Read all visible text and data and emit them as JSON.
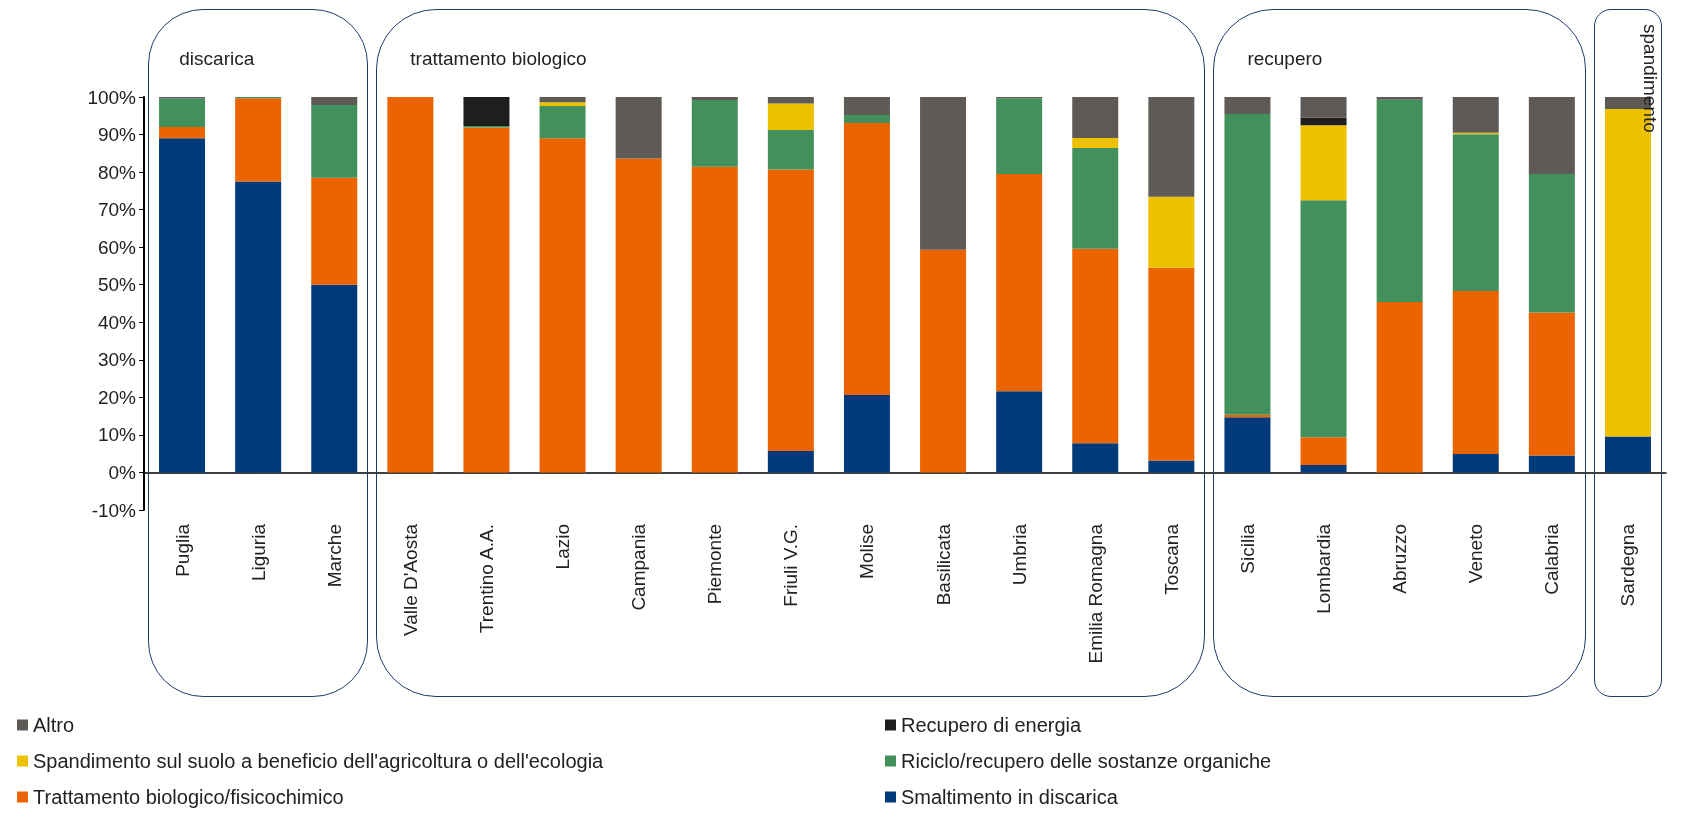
{
  "chart_data": {
    "type": "bar",
    "stacked": true,
    "categories": [
      "Puglia",
      "Liguria",
      "Marche",
      "Valle D'Aosta",
      "Trentino A.A.",
      "Lazio",
      "Campania",
      "Piemonte",
      "Friuli V.G.",
      "Molise",
      "Basilicata",
      "Umbria",
      "Emilia Romagna",
      "Toscana",
      "Sicilia",
      "Lombardia",
      "Abruzzo",
      "Veneto",
      "Calabria",
      "Sardegna"
    ],
    "series": [
      {
        "name": "Smaltimento in discarica",
        "color": "#003a7a",
        "values": [
          89,
          77.5,
          50,
          0,
          0,
          0,
          0,
          0,
          5.7,
          20.6,
          0,
          21.6,
          7.8,
          3.2,
          14.7,
          2.0,
          0,
          4.9,
          4.5,
          9.6
        ]
      },
      {
        "name": "Trattamento biologico/fisicochimico",
        "color": "#ec6400",
        "values": [
          3,
          22.2,
          28.5,
          100,
          91.9,
          89,
          83.6,
          81.4,
          75,
          72.5,
          59.3,
          57.9,
          51.8,
          51.3,
          0.7,
          7.4,
          45.4,
          43.4,
          38.1,
          0
        ]
      },
      {
        "name": "Riciclo/recupero delle sostanze organiche",
        "color": "#42915c",
        "values": [
          7.6,
          0.3,
          19.4,
          0,
          0.4,
          8.6,
          0,
          17.8,
          10.5,
          2.1,
          0,
          20.2,
          26.8,
          0,
          80.1,
          63.1,
          53.9,
          41.8,
          36.9,
          0
        ]
      },
      {
        "name": "Spandimento sul suolo a beneficio dell'agricoltura o dell'ecologia",
        "color": "#edc000",
        "values": [
          0,
          0,
          0,
          0,
          0,
          1.0,
          0,
          0,
          7.1,
          0,
          0,
          0,
          2.7,
          18.9,
          0,
          20,
          0,
          0.4,
          0,
          87.2
        ]
      },
      {
        "name": "Recupero di energia",
        "color": "#1e1e1e",
        "values": [
          0,
          0,
          0,
          0,
          7.7,
          0,
          0,
          0,
          0,
          0,
          0,
          0,
          0,
          0,
          0,
          2.0,
          0,
          0,
          0,
          0
        ]
      },
      {
        "name": "Altro",
        "color": "#5e5a56",
        "values": [
          0.4,
          0,
          2.1,
          0,
          0,
          1.4,
          16.4,
          0.8,
          1.7,
          4.8,
          40.7,
          0.3,
          10.9,
          26.6,
          4.5,
          5.5,
          0.7,
          9.5,
          20.5,
          3.2
        ]
      }
    ],
    "ylim": [
      -10,
      100
    ],
    "yticks": [
      {
        "value": -10,
        "label": "-10%"
      },
      {
        "value": 0,
        "label": "0%"
      },
      {
        "value": 10,
        "label": "10%"
      },
      {
        "value": 20,
        "label": "20%"
      },
      {
        "value": 30,
        "label": "30%"
      },
      {
        "value": 40,
        "label": "40%"
      },
      {
        "value": 50,
        "label": "50%"
      },
      {
        "value": 60,
        "label": "60%"
      },
      {
        "value": 70,
        "label": "70%"
      },
      {
        "value": 80,
        "label": "80%"
      },
      {
        "value": 90,
        "label": "90%"
      },
      {
        "value": 100,
        "label": "100%"
      }
    ],
    "annotations": [
      "discarica",
      "trattamento biologico",
      "recupero",
      "spandimento"
    ],
    "legend": "bottom left"
  }
}
